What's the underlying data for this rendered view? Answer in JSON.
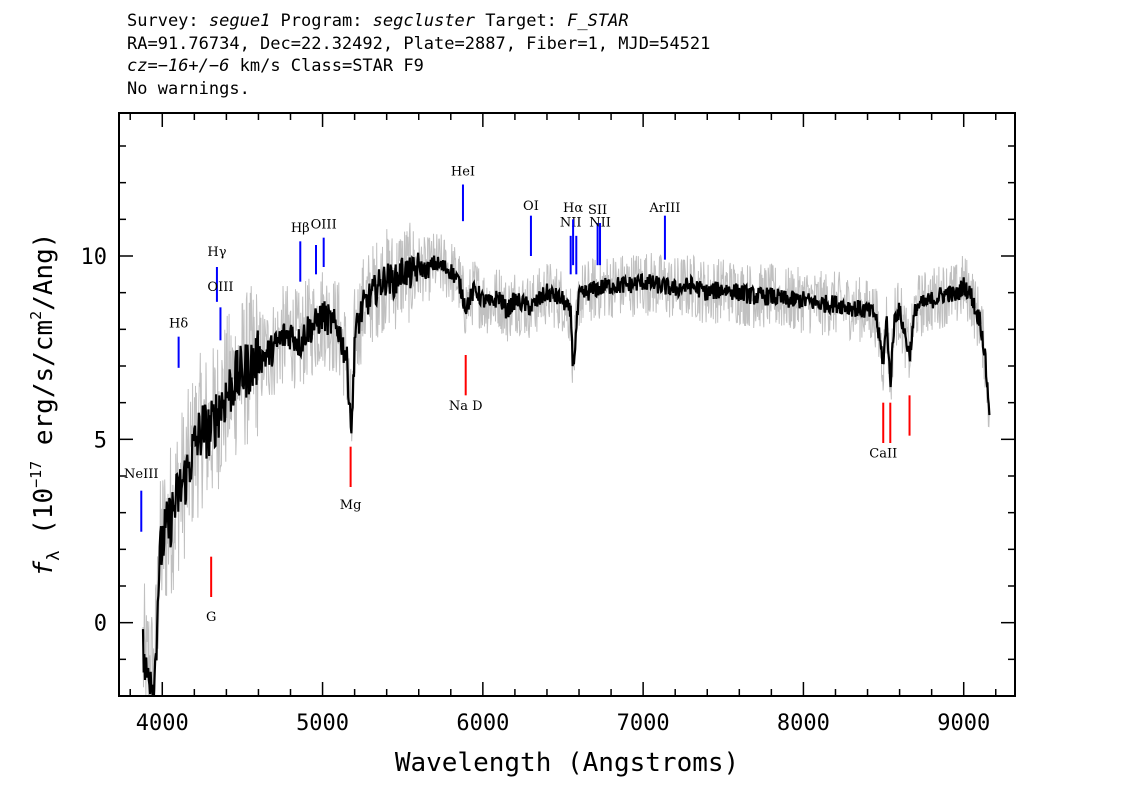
{
  "header": {
    "line1": {
      "survey_label": "Survey: ",
      "survey": "segue1",
      "program_label": " Program: ",
      "program": "segcluster",
      "target_label": " Target: ",
      "target": "F_STAR"
    },
    "line2": "RA=91.76734, Dec=22.32492, Plate=2887, Fiber=1, MJD=54521",
    "line3": {
      "cz_prefix": "cz=",
      "cz": "−16+/−6",
      "cz_suffix": " km/s Class=STAR F9"
    },
    "line4": "No warnings."
  },
  "chart_data": {
    "type": "line",
    "xlabel": "Wavelength (Angstroms)",
    "ylabel_symbol": "f",
    "ylabel_sub": "λ",
    "ylabel_rest": " (10",
    "ylabel_exp": "−17",
    "ylabel_units": " erg/s/cm",
    "ylabel_exp2": "2",
    "ylabel_end": "/Ang)",
    "xlim": [
      3730,
      9320
    ],
    "ylim": [
      -2,
      13.9
    ],
    "xticks": [
      4000,
      5000,
      6000,
      7000,
      8000,
      9000
    ],
    "yticks": [
      0,
      5,
      10
    ],
    "x_minor_step": 200,
    "y_minor_step": 1,
    "grid": false,
    "series": [
      {
        "role": "smoothed",
        "color": "#000000",
        "x": [
          3880,
          3900,
          3920,
          3950,
          3980,
          4000,
          4050,
          4100,
          4150,
          4200,
          4250,
          4300,
          4350,
          4400,
          4450,
          4500,
          4550,
          4600,
          4650,
          4700,
          4750,
          4800,
          4861,
          4900,
          4950,
          5000,
          5050,
          5100,
          5150,
          5183,
          5200,
          5250,
          5300,
          5350,
          5400,
          5450,
          5500,
          5550,
          5600,
          5650,
          5700,
          5750,
          5800,
          5850,
          5893,
          5950,
          6000,
          6050,
          6100,
          6150,
          6200,
          6250,
          6300,
          6350,
          6400,
          6450,
          6500,
          6550,
          6563,
          6600,
          6650,
          6700,
          6800,
          6900,
          7000,
          7100,
          7200,
          7300,
          7400,
          7500,
          7600,
          7700,
          7800,
          7900,
          8000,
          8100,
          8200,
          8300,
          8400,
          8450,
          8498,
          8520,
          8542,
          8570,
          8600,
          8662,
          8700,
          8750,
          8800,
          8850,
          8900,
          8950,
          9000,
          9050,
          9080,
          9100,
          9130,
          9160
        ],
        "y": [
          -0.8,
          -1.5,
          -1.2,
          -1.8,
          1.5,
          2.2,
          2.8,
          3.5,
          4.0,
          4.8,
          5.3,
          5.2,
          5.8,
          6.2,
          6.6,
          6.8,
          7.0,
          7.2,
          7.3,
          7.5,
          7.8,
          7.9,
          7.6,
          8.0,
          8.1,
          8.4,
          8.2,
          8.0,
          7.2,
          5.2,
          7.8,
          8.6,
          8.9,
          9.2,
          9.4,
          9.3,
          9.6,
          9.5,
          9.7,
          9.6,
          9.8,
          9.7,
          9.6,
          9.3,
          8.6,
          9.1,
          8.8,
          8.7,
          8.9,
          8.5,
          8.8,
          8.7,
          8.6,
          8.8,
          9.0,
          8.9,
          8.8,
          8.4,
          6.9,
          8.9,
          9.0,
          9.1,
          9.2,
          9.2,
          9.3,
          9.2,
          9.1,
          9.2,
          9.0,
          9.1,
          9.0,
          8.9,
          8.9,
          8.8,
          8.8,
          8.7,
          8.7,
          8.6,
          8.5,
          8.4,
          7.1,
          8.3,
          6.5,
          8.4,
          8.5,
          7.3,
          8.6,
          8.7,
          8.8,
          8.9,
          9.0,
          8.9,
          9.2,
          8.9,
          8.4,
          8.3,
          7.4,
          5.8
        ]
      },
      {
        "role": "raw",
        "color": "#c0c0c0"
      }
    ],
    "emission_lines": [
      {
        "label": "NeIII",
        "x": 3869,
        "label_y": 3.95,
        "y0": 2.48,
        "y1": 3.6
      },
      {
        "label": "Hδ",
        "x": 4102,
        "label_y": 8.05,
        "y0": 6.95,
        "y1": 7.8
      },
      {
        "label": "Hγ",
        "x": 4341,
        "label_y": 10.0,
        "y0": 8.75,
        "y1": 9.7
      },
      {
        "label": "OIII",
        "x": 4363,
        "label_y": 9.05,
        "y0": 7.7,
        "y1": 8.6
      },
      {
        "label": "Hβ",
        "x": 4861,
        "label_y": 10.65,
        "y0": 9.3,
        "y1": 10.4
      },
      {
        "label": "OIII",
        "x": 4959,
        "label_y": null,
        "y0": 9.5,
        "y1": 10.3
      },
      {
        "label": "OIII",
        "x": 5007,
        "label_y": 10.75,
        "y0": 9.7,
        "y1": 10.5
      },
      {
        "label": "HeI",
        "x": 5876,
        "label_y": 12.2,
        "y0": 10.95,
        "y1": 11.95
      },
      {
        "label": "OI",
        "x": 6300,
        "label_y": 11.25,
        "y0": 10.0,
        "y1": 11.1
      },
      {
        "label": "NII",
        "x": 6548,
        "label_y": 10.8,
        "y0": 9.5,
        "y1": 10.55
      },
      {
        "label": "Hα",
        "x": 6563,
        "label_y": 11.2,
        "y0": 9.75,
        "y1": 11.0
      },
      {
        "label": "NII",
        "x": 6583,
        "label_y": null,
        "y0": 9.5,
        "y1": 10.55
      },
      {
        "label": "SII",
        "x": 6716,
        "label_y": 11.15,
        "y0": 9.75,
        "y1": 10.9
      },
      {
        "label": "NII",
        "x": 6731,
        "label_y": 10.8,
        "y0": 9.75,
        "y1": 10.9
      },
      {
        "label": "ArIII",
        "x": 7136,
        "label_y": 11.2,
        "y0": 9.9,
        "y1": 11.1
      }
    ],
    "absorption_lines": [
      {
        "label": "G",
        "x": 4305,
        "label_y": 0.05,
        "y0": 0.7,
        "y1": 1.8
      },
      {
        "label": "Mg",
        "x": 5175,
        "label_y": 3.1,
        "y0": 3.7,
        "y1": 4.8
      },
      {
        "label": "Na D",
        "x": 5893,
        "label_y": 5.8,
        "y0": 6.2,
        "y1": 7.3
      },
      {
        "label": "CaII",
        "x": 8498,
        "label_y": 4.5,
        "y0": 4.9,
        "y1": 6.0
      },
      {
        "label": "CaII",
        "x": 8542,
        "label_y": null,
        "y0": 4.9,
        "y1": 6.0
      },
      {
        "label": "CaII",
        "x": 8662,
        "label_y": null,
        "y0": 5.1,
        "y1": 6.2
      }
    ],
    "emission_color": "#0000ff",
    "absorption_color": "#ff0000"
  }
}
